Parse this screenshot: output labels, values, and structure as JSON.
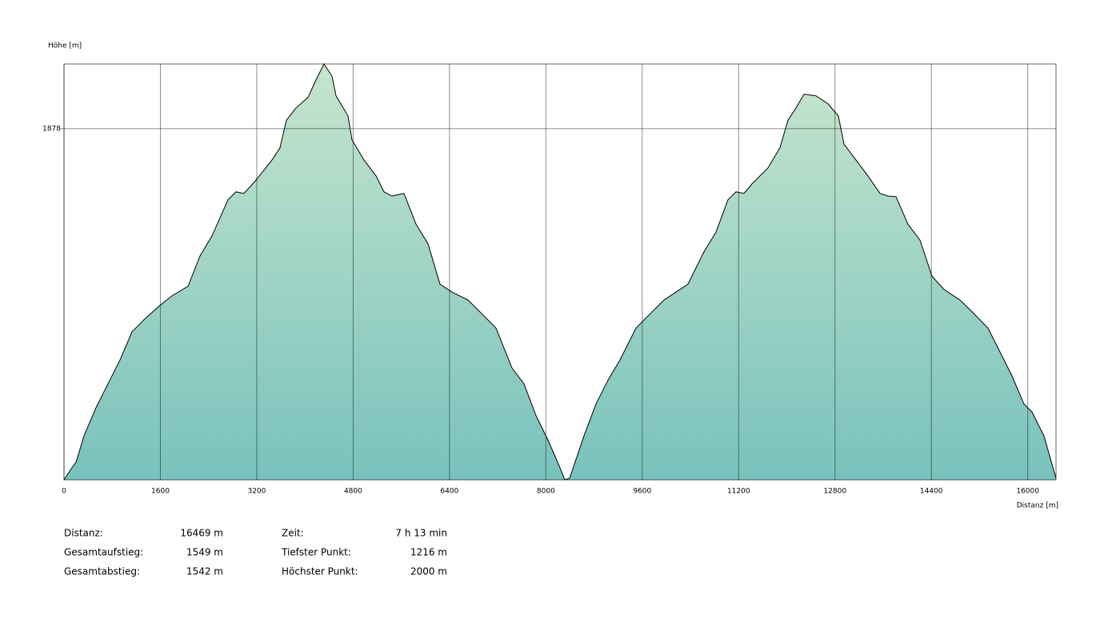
{
  "chart_data": {
    "type": "area",
    "y_label": "Höhe [m]",
    "x_label": "Distanz [m]",
    "x": [
      0,
      133,
      199,
      332,
      531,
      730,
      930,
      1129,
      1328,
      1594,
      1793,
      2059,
      2258,
      2457,
      2723,
      2855,
      2988,
      3187,
      3453,
      3586,
      3692,
      3851,
      4051,
      4184,
      4316,
      4449,
      4516,
      4715,
      4781,
      4980,
      5180,
      5312,
      5445,
      5644,
      5844,
      6043,
      6242,
      6441,
      6707,
      6973,
      7172,
      7437,
      7637,
      7836,
      8035,
      8234,
      8314,
      8394,
      8633,
      8832,
      9031,
      9230,
      9496,
      9695,
      9961,
      10160,
      10359,
      10625,
      10824,
      11023,
      11156,
      11289,
      11422,
      11687,
      11886,
      12019,
      12152,
      12285,
      12484,
      12683,
      12856,
      12949,
      13148,
      13347,
      13547,
      13679,
      13812,
      14011,
      14211,
      14410,
      14609,
      14875,
      15074,
      15340,
      15539,
      15738,
      15937,
      16070,
      16269,
      16469
    ],
    "values": [
      1216,
      1239,
      1249,
      1299,
      1352,
      1397,
      1442,
      1495,
      1518,
      1545,
      1563,
      1581,
      1638,
      1676,
      1744,
      1759,
      1756,
      1781,
      1819,
      1842,
      1894,
      1917,
      1937,
      1970,
      2000,
      1977,
      1940,
      1902,
      1857,
      1819,
      1789,
      1759,
      1751,
      1756,
      1698,
      1661,
      1585,
      1570,
      1555,
      1525,
      1502,
      1427,
      1397,
      1337,
      1291,
      1239,
      1216,
      1219,
      1299,
      1359,
      1404,
      1442,
      1502,
      1525,
      1555,
      1570,
      1585,
      1646,
      1683,
      1744,
      1759,
      1756,
      1774,
      1804,
      1842,
      1894,
      1917,
      1943,
      1940,
      1925,
      1902,
      1849,
      1819,
      1789,
      1756,
      1751,
      1750,
      1698,
      1668,
      1600,
      1575,
      1555,
      1533,
      1502,
      1457,
      1412,
      1359,
      1344,
      1299,
      1219
    ],
    "color_top": "#c6e5cd",
    "color_bottom": "#79c2bd",
    "line_color": "#000000",
    "xlim": [
      0,
      16469
    ],
    "ylim": [
      1216,
      2000
    ],
    "xticks": [
      0,
      1600,
      3200,
      4800,
      6400,
      8000,
      9600,
      11200,
      12800,
      14400,
      16000
    ],
    "yticks": [
      1878
    ],
    "grid": true
  },
  "stats": {
    "left": [
      {
        "label": "Distanz:",
        "value": "16469 m"
      },
      {
        "label": "Gesamtaufstieg:",
        "value": "1549 m"
      },
      {
        "label": "Gesamtabstieg:",
        "value": "1542 m"
      }
    ],
    "right": [
      {
        "label": "Zeit:",
        "value": "7 h 13 min"
      },
      {
        "label": "Tiefster Punkt:",
        "value": "1216 m"
      },
      {
        "label": "Höchster Punkt:",
        "value": "2000 m"
      }
    ]
  }
}
